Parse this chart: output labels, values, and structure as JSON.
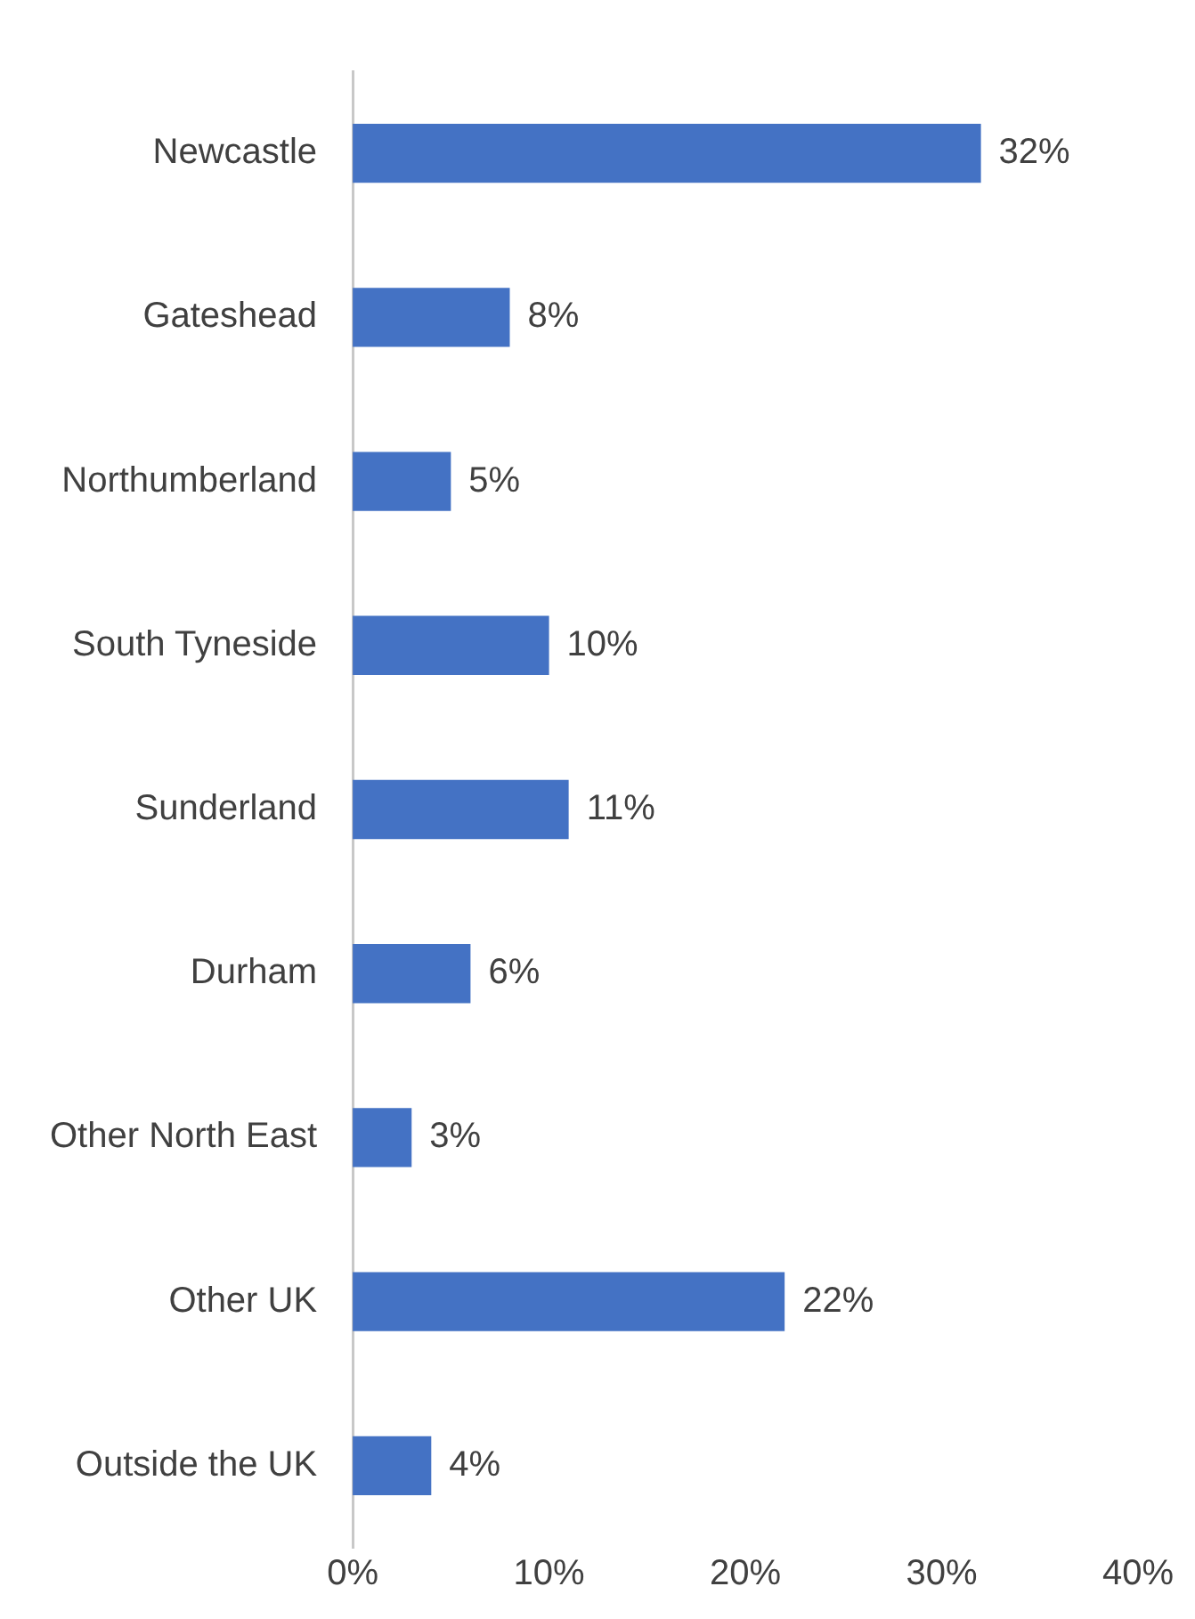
{
  "chart_data": {
    "type": "bar",
    "orientation": "horizontal",
    "categories": [
      "Newcastle",
      "Gateshead",
      "Northumberland",
      "South Tyneside",
      "Sunderland",
      "Durham",
      "Other North East",
      "Other UK",
      "Outside the UK"
    ],
    "values": [
      32,
      8,
      5,
      10,
      11,
      6,
      3,
      22,
      4
    ],
    "value_labels": [
      "32%",
      "8%",
      "5%",
      "10%",
      "11%",
      "6%",
      "3%",
      "22%",
      "4%"
    ],
    "color": "#4472c4",
    "xlim": [
      0,
      40
    ],
    "xticks": [
      {
        "value": 0,
        "label": "0%"
      },
      {
        "value": 10,
        "label": "10%"
      },
      {
        "value": 20,
        "label": "20%"
      },
      {
        "value": 30,
        "label": "30%"
      },
      {
        "value": 40,
        "label": "40%"
      }
    ],
    "grid": false,
    "legend": false
  }
}
